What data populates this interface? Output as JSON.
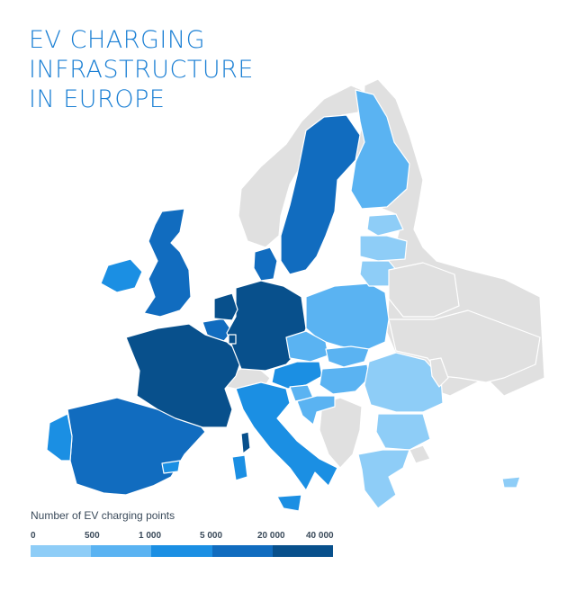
{
  "title": [
    "EV CHARGING",
    "INFRASTRUCTURE",
    "IN EUROPE"
  ],
  "legend": {
    "title": "Number of EV charging points",
    "ticks": [
      "0",
      "500",
      "1 000",
      "5 000",
      "20 000",
      "40 000"
    ],
    "colors": [
      "#8ecdf7",
      "#5ab3f2",
      "#1b8fe3",
      "#116cbf",
      "#08508c"
    ]
  },
  "colors": {
    "no_data": "#e0e0e0",
    "title": "#1a7fd4"
  },
  "regions": [
    {
      "name": "France",
      "class": 5
    },
    {
      "name": "Germany",
      "class": 5
    },
    {
      "name": "Netherlands",
      "class": 5
    },
    {
      "name": "Luxembourg",
      "class": 5
    },
    {
      "name": "Corsica",
      "class": 5
    },
    {
      "name": "United Kingdom",
      "class": 4
    },
    {
      "name": "Sweden",
      "class": 4
    },
    {
      "name": "Spain",
      "class": 4
    },
    {
      "name": "Belgium",
      "class": 4
    },
    {
      "name": "Denmark",
      "class": 4
    },
    {
      "name": "Italy",
      "class": 3
    },
    {
      "name": "Austria",
      "class": 3
    },
    {
      "name": "Ireland",
      "class": 3
    },
    {
      "name": "Portugal",
      "class": 3
    },
    {
      "name": "Balearic Islands",
      "class": 3
    },
    {
      "name": "Sardinia",
      "class": 3
    },
    {
      "name": "Sicily",
      "class": 3
    },
    {
      "name": "Finland",
      "class": 2
    },
    {
      "name": "Poland",
      "class": 2
    },
    {
      "name": "Czech Republic",
      "class": 2
    },
    {
      "name": "Slovakia",
      "class": 2
    },
    {
      "name": "Hungary",
      "class": 2
    },
    {
      "name": "Slovenia",
      "class": 2
    },
    {
      "name": "Croatia",
      "class": 2
    },
    {
      "name": "Estonia",
      "class": 1
    },
    {
      "name": "Latvia",
      "class": 1
    },
    {
      "name": "Lithuania",
      "class": 1
    },
    {
      "name": "Romania",
      "class": 1
    },
    {
      "name": "Bulgaria",
      "class": 1
    },
    {
      "name": "Greece",
      "class": 1
    },
    {
      "name": "Cyprus",
      "class": 1
    },
    {
      "name": "Norway",
      "class": 0
    },
    {
      "name": "Switzerland",
      "class": 0
    },
    {
      "name": "Belarus",
      "class": 0
    },
    {
      "name": "Ukraine",
      "class": 0
    },
    {
      "name": "Moldova",
      "class": 0
    },
    {
      "name": "Russia",
      "class": 0
    },
    {
      "name": "Western Balkans",
      "class": 0
    },
    {
      "name": "Turkey",
      "class": 0
    }
  ]
}
